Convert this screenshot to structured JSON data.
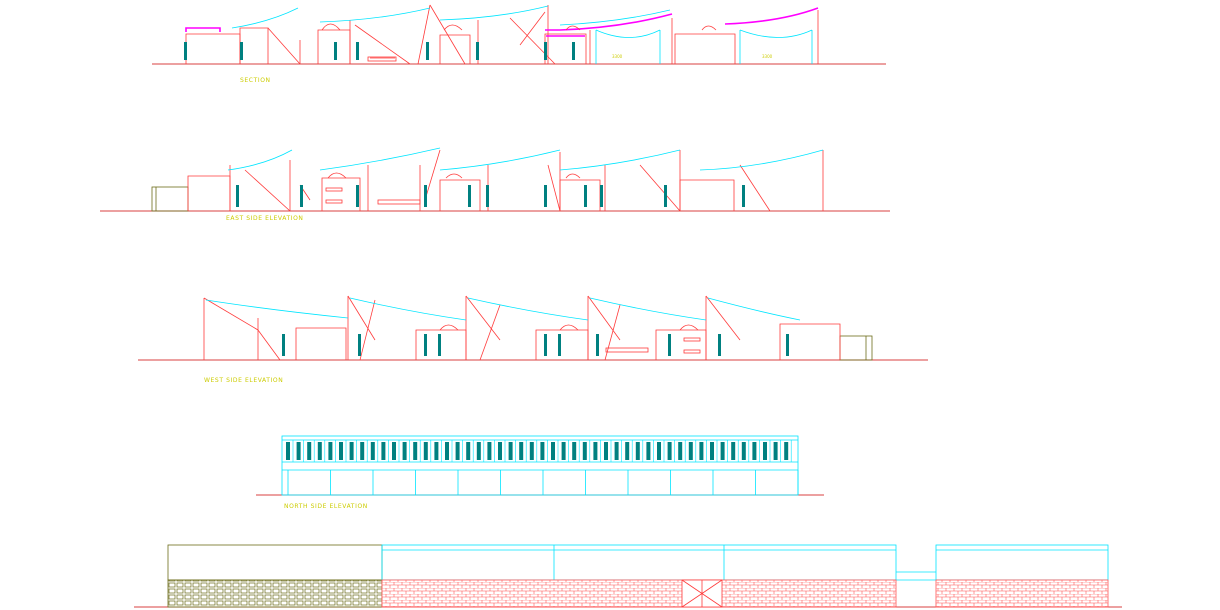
{
  "drawing": {
    "labels": {
      "section": "SECTION",
      "east": "EAST SIDE ELEVATION",
      "west": "WEST SIDE ELEVATION",
      "north": "NORTH SIDE ELEVATION"
    },
    "dimensions": {
      "d1": "3300",
      "d2": "3300"
    },
    "colors": {
      "background": "#ffffff",
      "wall_line": "#ff3b3b",
      "roof_line": "#00e5ff",
      "window_fill": "#008080",
      "section_cut": "#ff00ff",
      "label_text": "#cccc00",
      "ground_line": "#cc0000",
      "brick_pattern": "#ff5555",
      "stone_pattern": "#6b6b1a"
    }
  }
}
